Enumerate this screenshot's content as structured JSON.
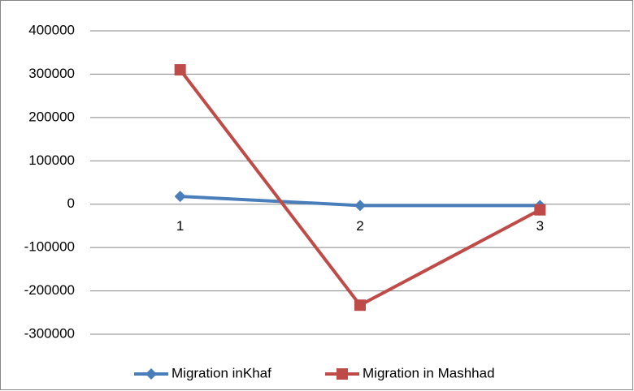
{
  "chart_data": {
    "type": "line",
    "categories": [
      "1",
      "2",
      "3"
    ],
    "series": [
      {
        "name": "Migration inKhaf",
        "color": "#4a7ebb",
        "values": [
          18000,
          -3000,
          -3000
        ]
      },
      {
        "name": "Migration in Mashhad",
        "color": "#be4b48",
        "values": [
          310000,
          -233000,
          -13000
        ]
      }
    ],
    "ylim": [
      -300000,
      400000
    ],
    "yticks": [
      -300000,
      -200000,
      -100000,
      0,
      100000,
      200000,
      300000,
      400000
    ],
    "grid": true,
    "legend": "bottom"
  }
}
